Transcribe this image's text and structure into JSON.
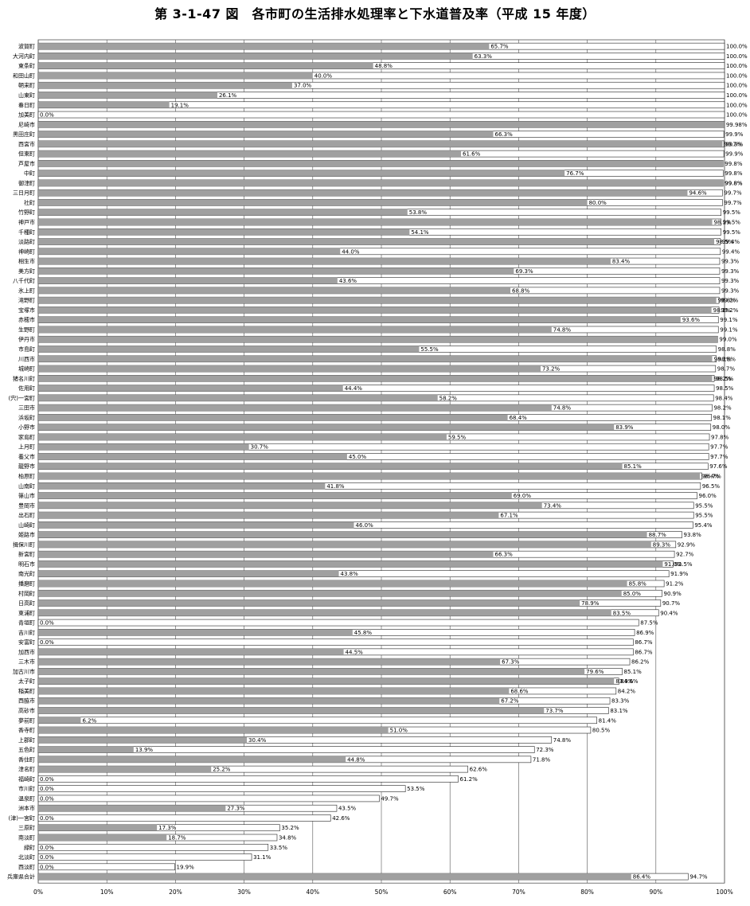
{
  "chart_data": {
    "type": "bar",
    "orientation": "horizontal",
    "title": "第 3-1-47 図　各市町の生活排水処理率と下水道普及率（平成 15 年度）",
    "xlabel": "",
    "ylabel": "",
    "xlim": [
      0,
      100
    ],
    "grid": true,
    "x_ticks": [
      "0%",
      "10%",
      "20%",
      "30%",
      "40%",
      "50%",
      "60%",
      "70%",
      "80%",
      "90%",
      "100%"
    ],
    "series": [
      {
        "name": "下水道普及率",
        "color": "#a0a0a0",
        "labels": [
          "65.7%",
          "63.3%",
          "48.8%",
          "40.0%",
          "37.0%",
          "26.1%",
          "19.1%",
          "0.0%",
          "",
          "66.3%",
          "99.7%",
          "61.6%",
          "",
          "76.7%",
          "99.8%",
          "94.6%",
          "80.0%",
          "53.8%",
          "98.2%",
          "54.1%",
          "98.5%",
          "44.0%",
          "83.4%",
          "69.3%",
          "43.6%",
          "68.8%",
          "98.8%",
          "98.1%",
          "93.6%",
          "74.8%",
          "",
          "55.5%",
          "98.2%",
          "73.2%",
          "98.2%",
          "44.4%",
          "58.2%",
          "74.8%",
          "68.4%",
          "83.9%",
          "59.5%",
          "30.7%",
          "45.0%",
          "85.1%",
          "96.4%",
          "41.8%",
          "69.0%",
          "73.4%",
          "67.1%",
          "46.0%",
          "88.7%",
          "89.3%",
          "66.3%",
          "91.0%",
          "43.8%",
          "85.8%",
          "85.0%",
          "78.9%",
          "83.5%",
          "0.0%",
          "45.8%",
          "0.0%",
          "44.5%",
          "67.3%",
          "79.6%",
          "83.9%",
          "68.6%",
          "67.2%",
          "73.7%",
          "6.2%",
          "51.0%",
          "30.4%",
          "13.9%",
          "44.8%",
          "25.2%",
          "0.0%",
          "0.0%",
          "0.0%",
          "27.3%",
          "0.0%",
          "17.3%",
          "18.7%",
          "0.0%",
          "0.0%",
          "0.0%",
          "86.4%"
        ]
      },
      {
        "name": "生活排水処理率",
        "color": "#ffffff",
        "labels": [
          "100.0%",
          "100.0%",
          "100.0%",
          "100.0%",
          "100.0%",
          "100.0%",
          "100.0%",
          "100.0%",
          "99.98%",
          "99.9%",
          "99.9%",
          "99.9%",
          "99.8%",
          "99.8%",
          "99.8%",
          "99.7%",
          "99.7%",
          "99.5%",
          "99.5%",
          "99.5%",
          "99.4%",
          "99.4%",
          "99.3%",
          "99.3%",
          "99.3%",
          "99.3%",
          "99.2%",
          "99.2%",
          "99.1%",
          "99.1%",
          "99.0%",
          "98.8%",
          "98.8%",
          "98.7%",
          "98.5%",
          "98.5%",
          "98.4%",
          "98.2%",
          "98.1%",
          "98.0%",
          "97.8%",
          "97.7%",
          "97.7%",
          "97.6%",
          "96.7%",
          "96.5%",
          "96.0%",
          "95.5%",
          "95.5%",
          "95.4%",
          "93.8%",
          "92.9%",
          "92.7%",
          "92.5%",
          "91.9%",
          "91.2%",
          "90.9%",
          "90.7%",
          "90.4%",
          "87.5%",
          "86.9%",
          "86.7%",
          "86.7%",
          "86.2%",
          "85.1%",
          "84.6%",
          "84.2%",
          "83.3%",
          "83.1%",
          "81.4%",
          "80.5%",
          "74.8%",
          "72.3%",
          "71.8%",
          "62.6%",
          "61.2%",
          "53.5%",
          "49.7%",
          "43.5%",
          "42.6%",
          "35.2%",
          "34.8%",
          "33.5%",
          "31.1%",
          "19.9%",
          "94.7%"
        ]
      }
    ],
    "categories": [
      "波賀町",
      "大河内町",
      "東条町",
      "和田山町",
      "朝来町",
      "山東町",
      "春日町",
      "加美町",
      "尼崎市",
      "黒田庄町",
      "西宮市",
      "但東町",
      "芦屋市",
      "中町",
      "御津町",
      "三日月町",
      "社町",
      "竹野町",
      "神戸市",
      "千種町",
      "淡路町",
      "神崎町",
      "相生市",
      "美方町",
      "八千代町",
      "氷上町",
      "滝野町",
      "宝塚市",
      "赤穂市",
      "生野町",
      "伊丹市",
      "市島町",
      "川西市",
      "城崎町",
      "猪名川町",
      "佐用町",
      "(宍)一宮町",
      "三田市",
      "浜坂町",
      "小野市",
      "家島町",
      "上月町",
      "養父市",
      "龍野市",
      "柏原町",
      "山南町",
      "篠山市",
      "豊岡市",
      "出石町",
      "山崎町",
      "姫路市",
      "揖保川町",
      "新宮町",
      "明石市",
      "南光町",
      "播磨町",
      "村岡町",
      "日高町",
      "東浦町",
      "青垣町",
      "吉川町",
      "安富町",
      "加西市",
      "三木市",
      "加古川市",
      "太子町",
      "稲美町",
      "西脇市",
      "高砂市",
      "夢前町",
      "香寺町",
      "上郡町",
      "五色町",
      "香住町",
      "津名町",
      "福崎町",
      "市川町",
      "温泉町",
      "洲本市",
      "(津)一宮町",
      "三原町",
      "南淡町",
      "緑町",
      "北淡町",
      "西淡町",
      "兵庫県合計"
    ],
    "sewer": [
      65.7,
      63.3,
      48.8,
      40.0,
      37.0,
      26.1,
      19.1,
      0.0,
      99.98,
      66.3,
      99.7,
      61.6,
      99.8,
      76.7,
      99.8,
      94.6,
      80.0,
      53.8,
      98.2,
      54.1,
      98.5,
      44.0,
      83.4,
      69.3,
      43.6,
      68.8,
      98.8,
      98.1,
      93.6,
      74.8,
      99.0,
      55.5,
      98.2,
      73.2,
      98.2,
      44.4,
      58.2,
      74.8,
      68.4,
      83.9,
      59.5,
      30.7,
      45.0,
      85.1,
      96.4,
      41.8,
      69.0,
      73.4,
      67.1,
      46.0,
      88.7,
      89.3,
      66.3,
      91.0,
      43.8,
      85.8,
      85.0,
      78.9,
      83.5,
      0.0,
      45.8,
      0.0,
      44.5,
      67.3,
      79.6,
      83.9,
      68.6,
      67.2,
      73.7,
      6.2,
      51.0,
      30.4,
      13.9,
      44.8,
      25.2,
      0.0,
      0.0,
      0.0,
      27.3,
      0.0,
      17.3,
      18.7,
      0.0,
      0.0,
      0.0,
      86.4
    ],
    "treatment": [
      100.0,
      100.0,
      100.0,
      100.0,
      100.0,
      100.0,
      100.0,
      100.0,
      99.98,
      99.9,
      99.9,
      99.9,
      99.8,
      99.8,
      99.8,
      99.7,
      99.7,
      99.5,
      99.5,
      99.5,
      99.4,
      99.4,
      99.3,
      99.3,
      99.3,
      99.3,
      99.2,
      99.2,
      99.1,
      99.1,
      99.0,
      98.8,
      98.8,
      98.7,
      98.5,
      98.5,
      98.4,
      98.2,
      98.1,
      98.0,
      97.8,
      97.7,
      97.7,
      97.6,
      96.7,
      96.5,
      96.0,
      95.5,
      95.5,
      95.4,
      93.8,
      92.9,
      92.7,
      92.5,
      91.9,
      91.2,
      90.9,
      90.7,
      90.4,
      87.5,
      86.9,
      86.7,
      86.7,
      86.2,
      85.1,
      84.6,
      84.2,
      83.3,
      83.1,
      81.4,
      80.5,
      74.8,
      72.3,
      71.8,
      62.6,
      61.2,
      53.5,
      49.7,
      43.5,
      42.6,
      35.2,
      34.8,
      33.5,
      31.1,
      19.9,
      94.7
    ]
  }
}
